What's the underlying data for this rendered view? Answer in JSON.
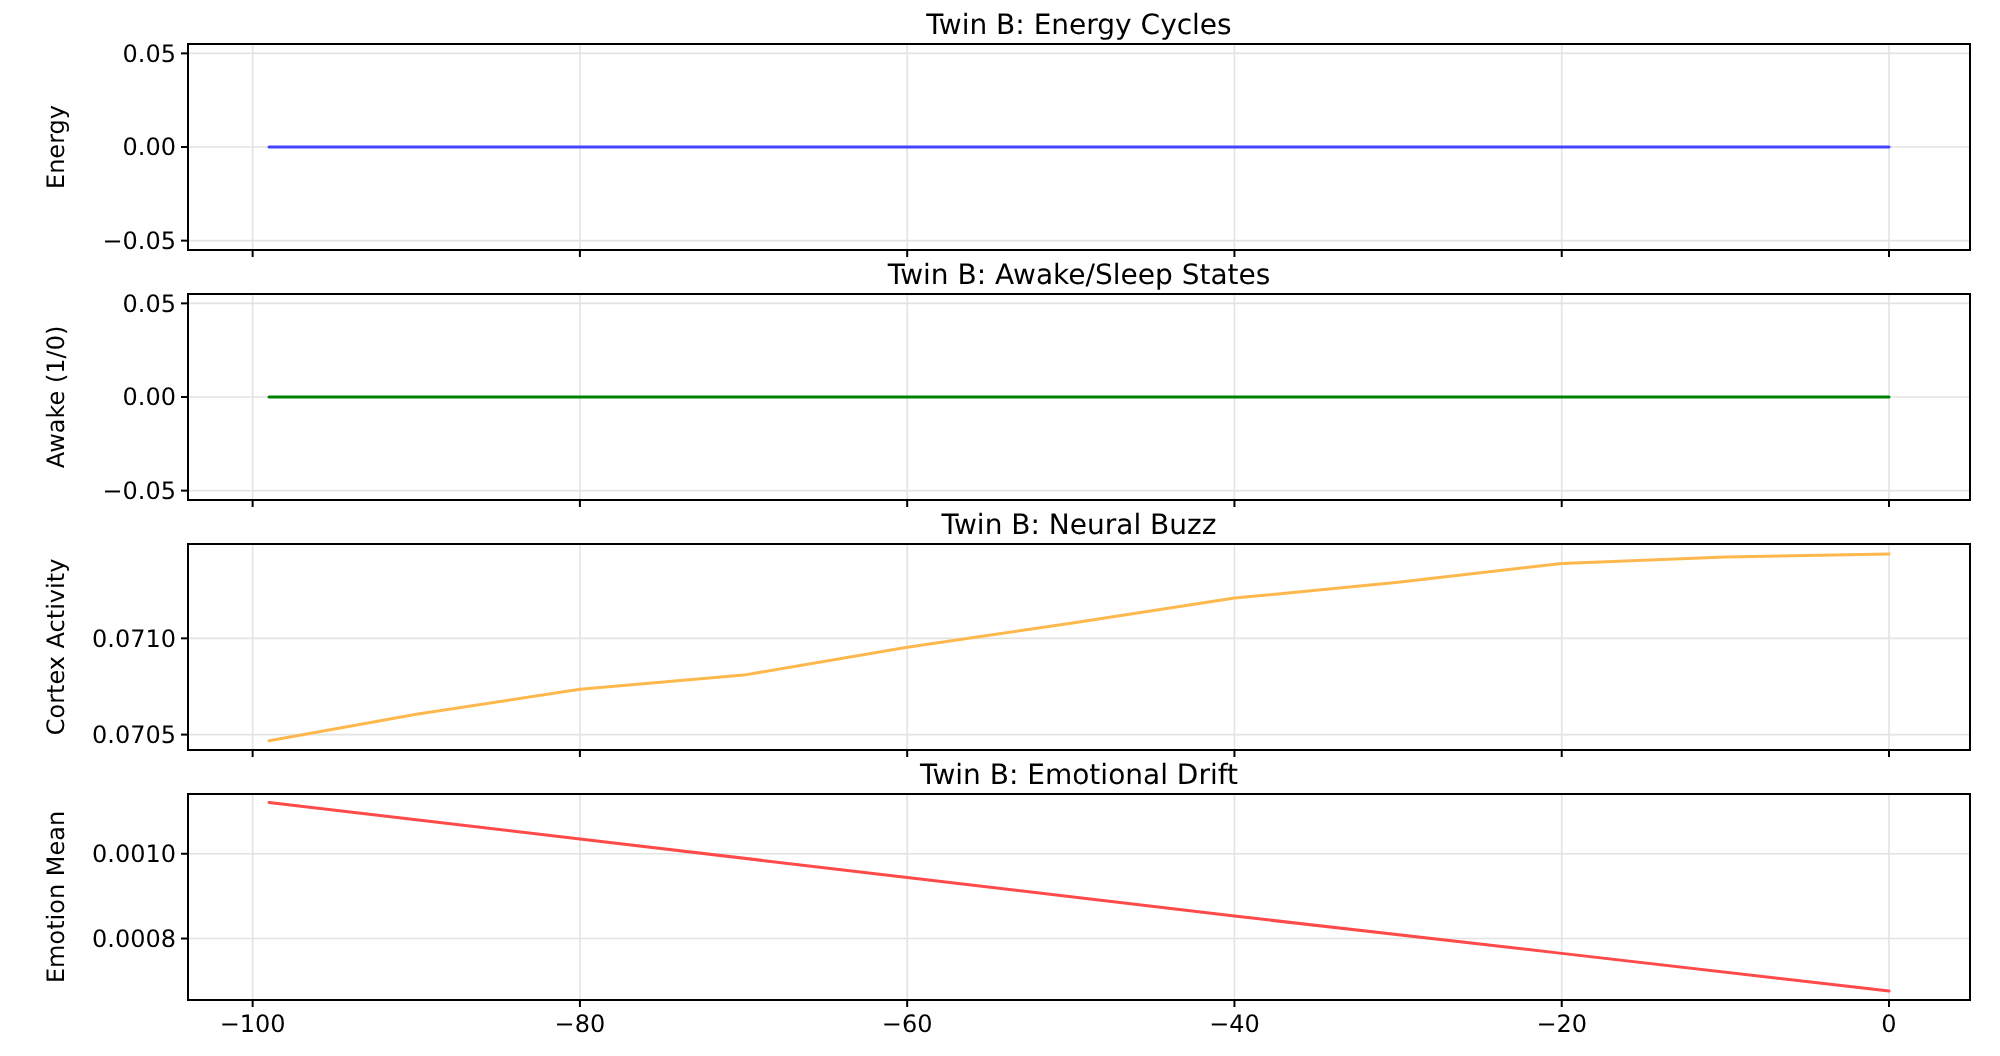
{
  "chart_data": [
    {
      "type": "line",
      "title": "Twin B: Energy Cycles",
      "ylabel": "Energy",
      "x": [
        -99,
        -75,
        -50,
        -25,
        0
      ],
      "series": [
        {
          "color": "#4444ff",
          "values": [
            0,
            0,
            0,
            0,
            0
          ]
        }
      ],
      "xlim": [
        -103.95,
        4.95
      ],
      "xticks": [
        {
          "value": -100,
          "label": null
        },
        {
          "value": -80,
          "label": null
        },
        {
          "value": -60,
          "label": null
        },
        {
          "value": -40,
          "label": null
        },
        {
          "value": -20,
          "label": null
        },
        {
          "value": 0,
          "label": null
        }
      ],
      "ylim": [
        -0.055,
        0.055
      ],
      "yticks": [
        {
          "value": -0.05,
          "label": "−0.05"
        },
        {
          "value": 0,
          "label": "0.00"
        },
        0.05
      ],
      "grid": true,
      "tick_labels": "y"
    },
    {
      "type": "line",
      "title": "Twin B: Awake/Sleep States",
      "ylabel": "Awake (1/0)",
      "x": [
        -99,
        -75,
        -50,
        -25,
        0
      ],
      "series": [
        {
          "color": "#008000",
          "values": [
            0,
            0,
            0,
            0,
            0
          ]
        }
      ],
      "xlim": [
        -103.95,
        4.95
      ],
      "xticks": [
        {
          "value": -100,
          "label": null
        },
        {
          "value": -80,
          "label": null
        },
        {
          "value": -60,
          "label": null
        },
        {
          "value": -40,
          "label": null
        },
        {
          "value": -20,
          "label": null
        },
        {
          "value": 0,
          "label": null
        }
      ],
      "ylim": [
        -0.055,
        0.055
      ],
      "yticks": [
        {
          "value": -0.05,
          "label": "−0.05"
        },
        {
          "value": 0,
          "label": "0.00"
        },
        0.05
      ],
      "grid": true,
      "tick_labels": "y"
    },
    {
      "type": "line",
      "title": "Twin B: Neural Buzz",
      "ylabel": "Cortex Activity",
      "x": [
        -99,
        -90,
        -80,
        -70,
        -60,
        -50,
        -40,
        -30,
        -20,
        -10,
        0
      ],
      "series": [
        {
          "color": "#ffb84d",
          "values": [
            0.070468,
            0.070606,
            0.070735,
            0.070809,
            0.070954,
            0.071078,
            0.071209,
            0.071291,
            0.071389,
            0.071422,
            0.071438
          ]
        }
      ],
      "xlim": [
        -103.95,
        4.95
      ],
      "xticks": [
        {
          "value": -100,
          "label": null
        },
        {
          "value": -80,
          "label": null
        },
        {
          "value": -60,
          "label": null
        },
        {
          "value": -40,
          "label": null
        },
        {
          "value": -20,
          "label": null
        },
        {
          "value": 0,
          "label": null
        }
      ],
      "ylim": [
        0.07042,
        0.07149
      ],
      "yticks": [
        {
          "value": 0.0705,
          "label": "0.0705"
        },
        {
          "value": 0.071,
          "label": "0.0710"
        }
      ],
      "grid": true,
      "tick_labels": "y"
    },
    {
      "type": "line",
      "title": "Twin B: Emotional Drift",
      "ylabel": "Emotion Mean",
      "x": [
        -99,
        -80,
        -60,
        -40,
        -20,
        0
      ],
      "series": [
        {
          "color": "#ff4a4a",
          "values": [
            0.001121,
            0.001035,
            0.000944,
            0.000853,
            0.000765,
            0.000676
          ]
        }
      ],
      "xlim": [
        -103.95,
        4.95
      ],
      "xticks": [
        {
          "value": -100,
          "label": "−100"
        },
        {
          "value": -80,
          "label": "−80"
        },
        {
          "value": -60,
          "label": "−60"
        },
        {
          "value": -40,
          "label": "−40"
        },
        {
          "value": -20,
          "label": "−20"
        },
        {
          "value": 0,
          "label": "0"
        }
      ],
      "ylim": [
        0.000655,
        0.001141
      ],
      "yticks": [
        {
          "value": 0.0008,
          "label": "0.0008"
        },
        {
          "value": 0.001,
          "label": "0.0010"
        }
      ],
      "grid": true
    }
  ]
}
